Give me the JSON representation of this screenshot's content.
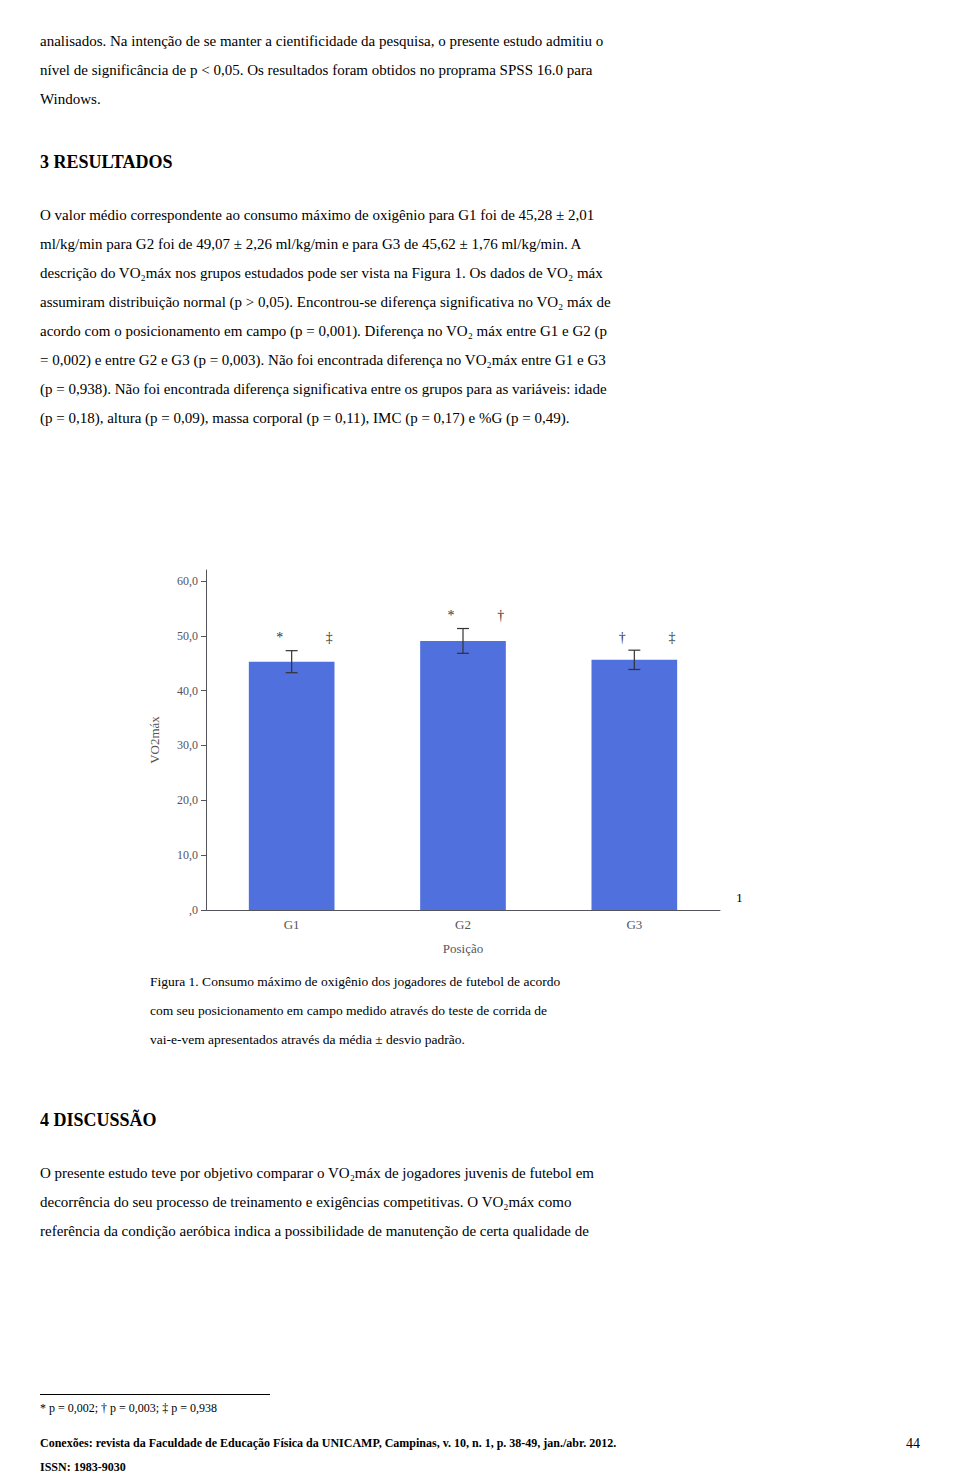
{
  "chart_data": {
    "type": "bar",
    "categories": [
      "G1",
      "G2",
      "G3"
    ],
    "values": [
      45.28,
      49.07,
      45.62
    ],
    "errors": [
      2.01,
      2.26,
      1.76
    ],
    "xlabel": "Posição",
    "ylabel": "VO2máx",
    "ylim": [
      0,
      62
    ],
    "yticks": [
      {
        "value": 0,
        "label": ",0"
      },
      {
        "value": 10,
        "label": "10,0"
      },
      {
        "value": 20,
        "label": "20,0"
      },
      {
        "value": 30,
        "label": "30,0"
      },
      {
        "value": 40,
        "label": "40,0"
      },
      {
        "value": 50,
        "label": "50,0"
      },
      {
        "value": 60,
        "label": "60,0"
      }
    ],
    "grid": false,
    "annotations": [
      {
        "category": "G1",
        "texts": [
          "*",
          "‡"
        ]
      },
      {
        "category": "G2",
        "texts": [
          "*",
          "†"
        ]
      },
      {
        "category": "G3",
        "texts": [
          "†",
          "‡"
        ]
      }
    ],
    "figure_label": "1",
    "caption": [
      "Figura 1. Consumo máximo de oxigênio dos jogadores de futebol de acordo",
      "com seu posicionamento em campo medido através do teste de corrida de",
      "vai-e-vem apresentados através da média ± desvio padrão."
    ]
  },
  "para1": [
    "analisados. Na intenção de se manter a cientificidade da pesquisa, o presente estudo admitiu o",
    "nível de significância de p < 0,05. Os resultados foram obtidos no proprama SPSS 16.0 para",
    "Windows."
  ],
  "heading1": "3 RESULTADOS",
  "para2": [
    "O valor médio correspondente ao consumo máximo de oxigênio para G1 foi de 45,28 ± 2,01",
    "ml/kg/min para G2 foi de 49,07 ± 2,26 ml/kg/min e para G3 de 45,62 ± 1,76 ml/kg/min. A",
    "descrição do VO₂máx nos grupos estudados pode ser vista na Figura 1. Os dados de VO₂ máx",
    "assumiram distribuição normal (p > 0,05). Encontrou-se diferença significativa no VO₂ máx de",
    "acordo com o posicionamento em campo (p = 0,001). Diferença no VO₂ máx entre G1 e G2 (p",
    "= 0,002) e entre G2 e G3 (p = 0,003). Não foi encontrada diferença no VO₂máx entre G1 e G3",
    "(p = 0,938). Não foi encontrada diferença significativa entre os grupos para as variáveis: idade",
    "(p = 0,18), altura (p = 0,09), massa corporal (p = 0,11), IMC (p = 0,17) e %G (p = 0,49)."
  ],
  "heading2": "4 DISCUSSÃO",
  "para3": [
    "O presente estudo teve por objetivo comparar o VO₂máx de jogadores juvenis de futebol em",
    "decorrência do seu processo de treinamento e exigências competitivas. O VO₂máx como",
    "referência da condição aeróbica indica a possibilidade de manutenção de certa qualidade de"
  ],
  "footnote": "* p = 0,002; † p = 0,003; ‡ p = 0,938",
  "journal_lines": [
    "Conexões: revista da Faculdade de Educação Física da UNICAMP, Campinas, v. 10, n. 1, p. 38-49, jan./abr. 2012.",
    "ISSN: 1983-9030"
  ],
  "page_number": "44"
}
